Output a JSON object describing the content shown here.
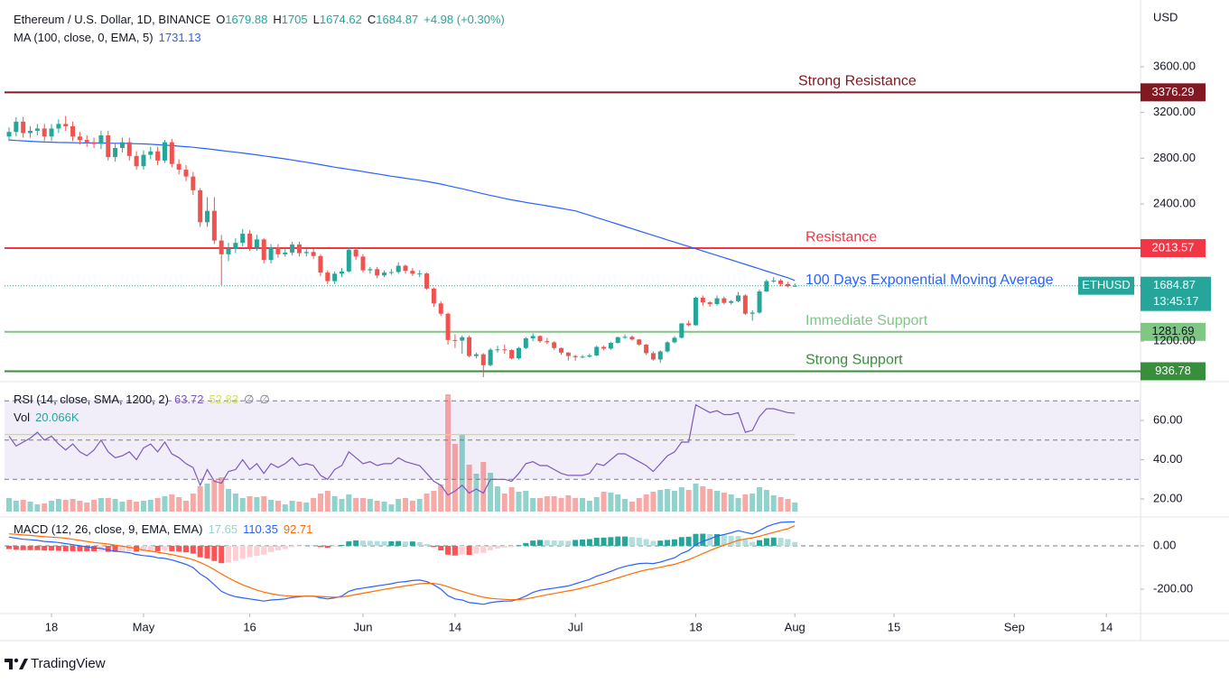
{
  "chart_data": [
    {
      "type": "candlestick",
      "name": "Ethereum / U.S. Dollar, 1D, BINANCE",
      "header_labels": [
        "O",
        "H",
        "L",
        "C"
      ],
      "change_label": "+4.98 (+0.30%)",
      "up_color": "#26a69a",
      "down_color": "#ef5350",
      "open": [
        2990,
        3030,
        3120,
        3020,
        3040,
        3060,
        2990,
        3060,
        3100,
        3080,
        2990,
        2960,
        2940,
        2925,
        3000,
        2810,
        2890,
        2940,
        2820,
        2730,
        2830,
        2860,
        2780,
        2940,
        2750,
        2700,
        2640,
        2520,
        2240,
        2340,
        2080,
        1960,
        2010,
        2060,
        2140,
        2020,
        2090,
        1910,
        2020,
        1960,
        1975,
        2045,
        1970,
        1980,
        1945,
        1800,
        1725,
        1790,
        1810,
        2000,
        1940,
        1820,
        1830,
        1775,
        1800,
        1805,
        1860,
        1815,
        1790,
        1792,
        1660,
        1530,
        1440,
        1210,
        1205,
        1235,
        1070,
        1085,
        990,
        1125,
        1128,
        1122,
        1050,
        1140,
        1225,
        1245,
        1200,
        1190,
        1140,
        1100,
        1070,
        1060,
        1065,
        1075,
        1150,
        1135,
        1185,
        1235,
        1238,
        1215,
        1170,
        1095,
        1040,
        1110,
        1190,
        1230,
        1355,
        1340,
        1580,
        1540,
        1525,
        1575,
        1535,
        1550,
        1600,
        1440,
        1450,
        1635,
        1725,
        1730,
        1700,
        1679.88
      ],
      "high": [
        3070,
        3160,
        3160,
        3080,
        3100,
        3100,
        3100,
        3140,
        3170,
        3120,
        3030,
        3000,
        2980,
        3040,
        3040,
        2930,
        2980,
        2980,
        2860,
        2870,
        2900,
        2900,
        2960,
        2970,
        2790,
        2740,
        2680,
        2540,
        2460,
        2460,
        2130,
        2060,
        2100,
        2180,
        2170,
        2130,
        2100,
        2050,
        2050,
        2010,
        2070,
        2070,
        2010,
        2010,
        1960,
        1820,
        1810,
        1840,
        2020,
        2020,
        1960,
        1850,
        1850,
        1820,
        1830,
        1890,
        1870,
        1840,
        1820,
        1800,
        1670,
        1550,
        1450,
        1260,
        1250,
        1250,
        1100,
        1095,
        1140,
        1160,
        1170,
        1130,
        1150,
        1235,
        1270,
        1250,
        1230,
        1200,
        1145,
        1105,
        1080,
        1080,
        1090,
        1160,
        1160,
        1195,
        1240,
        1260,
        1250,
        1220,
        1175,
        1110,
        1120,
        1200,
        1245,
        1360,
        1380,
        1590,
        1600,
        1550,
        1600,
        1590,
        1560,
        1630,
        1610,
        1470,
        1650,
        1740,
        1760,
        1745,
        1720,
        1705
      ],
      "low": [
        2950,
        2990,
        2980,
        2980,
        3000,
        2950,
        2950,
        3020,
        3040,
        2950,
        2920,
        2900,
        2890,
        2880,
        2780,
        2770,
        2850,
        2780,
        2700,
        2700,
        2790,
        2740,
        2760,
        2720,
        2660,
        2600,
        2480,
        2200,
        2200,
        2050,
        1690,
        1900,
        1970,
        2030,
        1990,
        1990,
        1880,
        1880,
        1930,
        1940,
        1950,
        1940,
        1940,
        1920,
        1770,
        1700,
        1700,
        1760,
        1800,
        1910,
        1800,
        1790,
        1750,
        1760,
        1780,
        1790,
        1790,
        1770,
        1760,
        1650,
        1500,
        1420,
        1170,
        1140,
        1090,
        1060,
        1050,
        885,
        980,
        1100,
        1090,
        1040,
        1040,
        1130,
        1200,
        1185,
        1175,
        1125,
        1080,
        1030,
        1030,
        1050,
        1055,
        1070,
        1120,
        1125,
        1180,
        1220,
        1205,
        1160,
        1080,
        1030,
        1010,
        1100,
        1180,
        1225,
        1330,
        1335,
        1510,
        1500,
        1510,
        1520,
        1520,
        1540,
        1430,
        1380,
        1440,
        1630,
        1710,
        1680,
        1670,
        1674.62
      ],
      "close": [
        3030,
        3120,
        3020,
        3040,
        3060,
        2990,
        3060,
        3100,
        3080,
        2990,
        2960,
        2940,
        2925,
        3000,
        2810,
        2890,
        2940,
        2820,
        2730,
        2830,
        2860,
        2780,
        2940,
        2750,
        2700,
        2640,
        2520,
        2240,
        2340,
        2080,
        1960,
        2010,
        2060,
        2140,
        2020,
        2090,
        1910,
        2020,
        1960,
        1975,
        2045,
        1970,
        1980,
        1945,
        1800,
        1725,
        1790,
        1810,
        2000,
        1940,
        1820,
        1830,
        1775,
        1800,
        1805,
        1860,
        1815,
        1790,
        1792,
        1660,
        1530,
        1440,
        1210,
        1205,
        1235,
        1070,
        1085,
        990,
        1125,
        1128,
        1122,
        1050,
        1140,
        1225,
        1245,
        1200,
        1190,
        1140,
        1100,
        1070,
        1060,
        1065,
        1075,
        1150,
        1135,
        1185,
        1235,
        1238,
        1215,
        1170,
        1095,
        1040,
        1110,
        1190,
        1230,
        1355,
        1340,
        1580,
        1540,
        1525,
        1575,
        1535,
        1550,
        1600,
        1440,
        1450,
        1635,
        1725,
        1730,
        1700,
        1680,
        1684.87
      ],
      "ma": {
        "name": "MA (100, close, 0, EMA, 5)",
        "color": "#2962ff",
        "values": [
          2960,
          2955,
          2952,
          2948,
          2945,
          2942,
          2940,
          2938,
          2937,
          2936,
          2935,
          2934,
          2933,
          2933,
          2932,
          2931,
          2930,
          2929,
          2927,
          2925,
          2922,
          2918,
          2915,
          2910,
          2906,
          2901,
          2896,
          2889,
          2883,
          2875,
          2867,
          2860,
          2853,
          2846,
          2838,
          2830,
          2820,
          2812,
          2803,
          2794,
          2785,
          2775,
          2765,
          2755,
          2744,
          2733,
          2722,
          2712,
          2703,
          2693,
          2683,
          2673,
          2663,
          2653,
          2643,
          2634,
          2625,
          2616,
          2607,
          2597,
          2586,
          2574,
          2560,
          2546,
          2533,
          2518,
          2504,
          2489,
          2475,
          2462,
          2449,
          2436,
          2425,
          2414,
          2404,
          2394,
          2384,
          2373,
          2362,
          2351,
          2340,
          2320,
          2301,
          2281,
          2262,
          2242,
          2223,
          2203,
          2184,
          2164,
          2145,
          2125,
          2106,
          2086,
          2067,
          2047,
          2028,
          2008,
          1989,
          1969,
          1950,
          1930,
          1911,
          1891,
          1872,
          1852,
          1833,
          1813,
          1794,
          1774,
          1755,
          1731.13
        ]
      },
      "annotation": "100 Days Exponential Moving Average",
      "levels": [
        {
          "name": "Strong Resistance",
          "value": 3376.29,
          "color": "#801922",
          "text_color": "#ffffff"
        },
        {
          "name": "Resistance",
          "value": 2013.57,
          "color": "#f23645",
          "text_color": "#ffffff"
        },
        {
          "name": "Immediate Support",
          "value": 1281.69,
          "color": "#81c784",
          "text_color": "#131722"
        },
        {
          "name": "Strong Support",
          "value": 936.78,
          "color": "#388e3c",
          "text_color": "#ffffff"
        }
      ],
      "symbol_tag": "ETHUSD",
      "countdown": "13:45:17",
      "axis_unit": "USD",
      "ylim": [
        846,
        4184
      ],
      "yticks": [
        {
          "value": 3600,
          "label": "3600.00"
        },
        {
          "value": 3200,
          "label": "3200.00"
        },
        {
          "value": 2800,
          "label": "2800.00"
        },
        {
          "value": 2400,
          "label": "2400.00"
        },
        {
          "value": 1200,
          "label": "1200.00"
        }
      ],
      "xticks": [
        {
          "value": 6,
          "label": "18"
        },
        {
          "value": 19,
          "label": "May"
        },
        {
          "value": 34,
          "label": "16"
        },
        {
          "value": 50,
          "label": "Jun"
        },
        {
          "value": 63,
          "label": "14"
        },
        {
          "value": 80,
          "label": "Jul"
        },
        {
          "value": 97,
          "label": "18"
        },
        {
          "value": 111,
          "label": "Aug"
        },
        {
          "value": 125,
          "label": "15"
        },
        {
          "value": 142,
          "label": "Sep"
        },
        {
          "value": 155,
          "label": "14"
        }
      ]
    },
    {
      "type": "rsi",
      "name": "RSI (14, close, SMA, 1200, 2)",
      "color": "#7e57c2",
      "values": [
        52,
        47,
        49,
        51,
        54,
        50,
        52,
        48,
        45,
        48,
        44,
        42,
        45,
        50,
        44,
        41,
        42,
        44,
        40,
        46,
        48,
        44,
        49,
        43,
        41,
        38,
        36,
        27,
        35,
        29,
        28,
        34,
        35,
        40,
        35,
        38,
        33,
        38,
        36,
        38,
        41,
        37,
        38,
        37,
        32,
        30,
        35,
        37,
        44,
        41,
        38,
        39,
        37,
        38,
        38,
        41,
        39,
        38,
        37,
        33,
        29,
        27,
        22,
        24,
        27,
        23,
        25,
        23,
        30,
        30,
        30,
        29,
        33,
        38,
        39,
        37,
        37,
        35,
        33,
        32,
        32,
        32,
        33,
        38,
        37,
        40,
        43,
        43,
        41,
        39,
        37,
        34,
        38,
        42,
        44,
        49,
        49,
        68,
        66,
        64,
        65,
        63,
        63,
        64,
        54,
        55,
        62,
        66,
        66,
        65,
        64,
        63.72
      ],
      "ma_value": 52.83,
      "ma_color": "#d4e157",
      "flags": [
        "∅",
        "∅"
      ],
      "bands": [
        70,
        50,
        30
      ],
      "volume": {
        "name": "Vol",
        "last_label": "20.066K",
        "up_color": "rgba(38,166,154,0.5)",
        "down_color": "rgba(239,83,80,0.5)",
        "values": [
          30,
          24,
          26,
          22,
          16,
          18,
          24,
          28,
          26,
          28,
          24,
          20,
          26,
          30,
          30,
          28,
          22,
          26,
          22,
          24,
          26,
          30,
          34,
          38,
          32,
          24,
          40,
          56,
          62,
          70,
          76,
          50,
          40,
          30,
          34,
          32,
          34,
          26,
          24,
          16,
          24,
          22,
          20,
          30,
          40,
          46,
          34,
          28,
          38,
          30,
          30,
          28,
          24,
          22,
          16,
          28,
          30,
          24,
          28,
          40,
          46,
          60,
          260,
          150,
          172,
          104,
          84,
          110,
          86,
          56,
          40,
          54,
          44,
          46,
          30,
          30,
          34,
          34,
          30,
          36,
          30,
          30,
          24,
          32,
          44,
          42,
          38,
          28,
          22,
          30,
          38,
          44,
          48,
          50,
          46,
          54,
          48,
          62,
          56,
          50,
          46,
          42,
          38,
          30,
          38,
          40,
          54,
          48,
          36,
          32,
          28,
          20.066
        ]
      },
      "ylim": [
        10.8,
        79.8
      ],
      "yticks": [
        {
          "value": 60,
          "label": "60.00"
        },
        {
          "value": 40,
          "label": "40.00"
        },
        {
          "value": 20,
          "label": "20.00"
        }
      ]
    },
    {
      "type": "macd",
      "name": "MACD (12, 26, close, 9, EMA, EMA)",
      "histogram_colors": [
        "#26a69a",
        "#b2dfdb",
        "#ff5252",
        "#ffcdd2"
      ],
      "histogram": [
        -15,
        -18,
        -20,
        -20,
        -20,
        -22,
        -22,
        -23,
        -25,
        -25,
        -25,
        -25,
        -25,
        -24,
        -28,
        -28,
        -26,
        -25,
        -27,
        -25,
        -23,
        -25,
        -23,
        -25,
        -27,
        -30,
        -36,
        -53,
        -58,
        -70,
        -80,
        -77,
        -70,
        -60,
        -53,
        -46,
        -41,
        -29,
        -21,
        -15,
        -6,
        -2,
        1,
        1,
        -6,
        -9,
        -3,
        4,
        21,
        25,
        24,
        23,
        22,
        21,
        21,
        22,
        20,
        20,
        17,
        8,
        -6,
        -21,
        -41,
        -45,
        -40,
        -42,
        -36,
        -33,
        -20,
        -13,
        -8,
        -6,
        3,
        13,
        24,
        27,
        26,
        25,
        24,
        23,
        27,
        29,
        31,
        37,
        38,
        40,
        43,
        43,
        40,
        37,
        31,
        23,
        24,
        27,
        30,
        40,
        42,
        55,
        56,
        54,
        54,
        49,
        46,
        45,
        30,
        18,
        26,
        35,
        38,
        37,
        31,
        17.65
      ],
      "macd": {
        "color": "#2962ff",
        "values": [
          40,
          35,
          30,
          28,
          25,
          20,
          18,
          15,
          10,
          5,
          0,
          -5,
          -10,
          -12,
          -20,
          -25,
          -28,
          -32,
          -40,
          -45,
          -48,
          -55,
          -58,
          -65,
          -75,
          -85,
          -100,
          -130,
          -150,
          -180,
          -210,
          -225,
          -235,
          -240,
          -245,
          -250,
          -255,
          -250,
          -248,
          -245,
          -238,
          -235,
          -232,
          -232,
          -240,
          -245,
          -240,
          -232,
          -210,
          -200,
          -195,
          -190,
          -185,
          -180,
          -175,
          -168,
          -165,
          -160,
          -158,
          -165,
          -180,
          -200,
          -230,
          -245,
          -250,
          -262,
          -265,
          -270,
          -262,
          -258,
          -255,
          -255,
          -245,
          -232,
          -215,
          -205,
          -200,
          -195,
          -190,
          -185,
          -175,
          -165,
          -155,
          -140,
          -130,
          -118,
          -105,
          -95,
          -88,
          -82,
          -80,
          -82,
          -75,
          -65,
          -55,
          -35,
          -22,
          5,
          20,
          32,
          45,
          52,
          60,
          70,
          62,
          55,
          70,
          88,
          100,
          108,
          110,
          110.35
        ]
      },
      "signal": {
        "color": "#ff6d00",
        "values": [
          55,
          53,
          50,
          48,
          45,
          42,
          40,
          38,
          35,
          30,
          25,
          20,
          15,
          12,
          8,
          3,
          -2,
          -7,
          -13,
          -20,
          -25,
          -30,
          -35,
          -40,
          -48,
          -55,
          -64,
          -77,
          -92,
          -110,
          -130,
          -148,
          -165,
          -180,
          -192,
          -204,
          -214,
          -221,
          -227,
          -230,
          -232,
          -233,
          -233,
          -233,
          -234,
          -236,
          -237,
          -236,
          -231,
          -225,
          -219,
          -213,
          -207,
          -201,
          -196,
          -190,
          -185,
          -180,
          -175,
          -173,
          -174,
          -179,
          -189,
          -200,
          -210,
          -220,
          -229,
          -237,
          -242,
          -245,
          -247,
          -249,
          -248,
          -245,
          -239,
          -232,
          -226,
          -220,
          -214,
          -208,
          -202,
          -194,
          -186,
          -177,
          -168,
          -158,
          -148,
          -138,
          -128,
          -119,
          -111,
          -105,
          -99,
          -92,
          -85,
          -75,
          -64,
          -50,
          -36,
          -22,
          -9,
          3,
          14,
          25,
          32,
          37,
          44,
          53,
          62,
          71,
          79,
          92.71
        ]
      },
      "ylim": [
        -312.5,
        133
      ],
      "yticks": [
        {
          "value": 0,
          "label": "0.00"
        },
        {
          "value": -200,
          "label": "-200.00"
        }
      ]
    }
  ],
  "footer": {
    "brand": "TradingView"
  }
}
